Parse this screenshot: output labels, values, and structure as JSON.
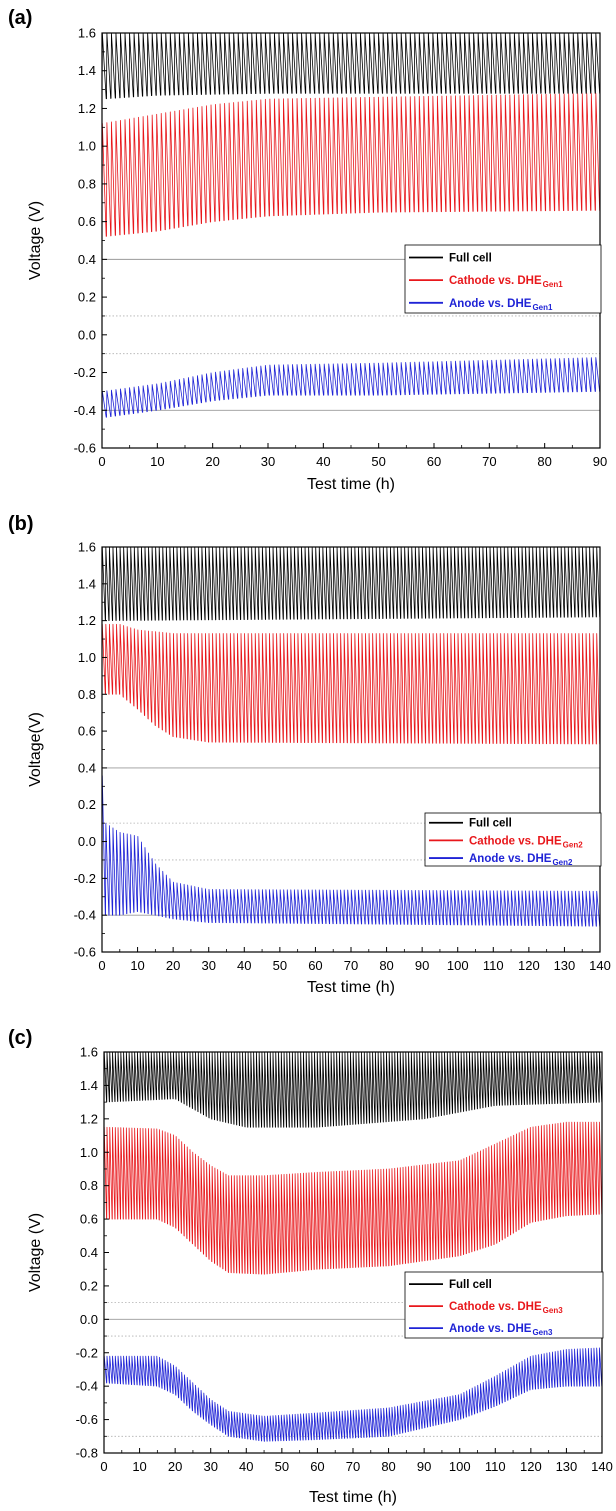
{
  "chart_data": [
    {
      "type": "line",
      "panel_label": "(a)",
      "xlabel": "Test time (h)",
      "ylabel": "Voltage (V)",
      "xlim": [
        0,
        90
      ],
      "ylim": [
        -0.6,
        1.6
      ],
      "xticks": [
        0,
        10,
        20,
        30,
        40,
        50,
        60,
        70,
        80,
        90
      ],
      "xtick_labels": [
        "0",
        "10",
        "20",
        "30",
        "40",
        "50",
        "60",
        "70",
        "80",
        "90"
      ],
      "yticks": [
        -0.6,
        -0.4,
        -0.2,
        0.0,
        0.2,
        0.4,
        0.6,
        0.8,
        1.0,
        1.2,
        1.4,
        1.6
      ],
      "ytick_labels": [
        "-0.6",
        "-0.4",
        "-0.2",
        "0.0",
        "0.2",
        "0.4",
        "0.6",
        "0.8",
        "1.0",
        "1.2",
        "1.4",
        "1.6"
      ],
      "reference_lines": [
        {
          "y": 0.4,
          "style": "solid"
        },
        {
          "y": 0.1,
          "style": "dotted"
        },
        {
          "y": -0.1,
          "style": "dotted"
        },
        {
          "y": -0.4,
          "style": "solid"
        }
      ],
      "grid": false,
      "legend_position": "center-right",
      "cycles": 110,
      "series": [
        {
          "name": "Full cell",
          "name_subscript": "",
          "color": "#000000",
          "envelope": [
            [
              0,
              1.25,
              1.6
            ],
            [
              10,
              1.27,
              1.6
            ],
            [
              30,
              1.28,
              1.6
            ],
            [
              90,
              1.28,
              1.6
            ]
          ]
        },
        {
          "name": "Cathode vs. DHE",
          "name_subscript": "Gen1",
          "color": "#e8171b",
          "envelope": [
            [
              0,
              0.52,
              1.12
            ],
            [
              10,
              0.55,
              1.17
            ],
            [
              20,
              0.6,
              1.22
            ],
            [
              30,
              0.63,
              1.25
            ],
            [
              50,
              0.65,
              1.26
            ],
            [
              90,
              0.66,
              1.28
            ]
          ]
        },
        {
          "name": "Anode vs. DHE",
          "name_subscript": "Gen1",
          "color": "#1f23d6",
          "envelope": [
            [
              0,
              -0.44,
              -0.3
            ],
            [
              10,
              -0.4,
              -0.26
            ],
            [
              20,
              -0.35,
              -0.2
            ],
            [
              30,
              -0.32,
              -0.16
            ],
            [
              50,
              -0.32,
              -0.15
            ],
            [
              90,
              -0.3,
              -0.12
            ]
          ]
        }
      ]
    },
    {
      "type": "line",
      "panel_label": "(b)",
      "xlabel": "Test time (h)",
      "ylabel": "Voltage(V)",
      "xlim": [
        0,
        140
      ],
      "ylim": [
        -0.6,
        1.6
      ],
      "xticks": [
        0,
        10,
        20,
        30,
        40,
        50,
        60,
        70,
        80,
        90,
        100,
        110,
        120,
        130,
        140
      ],
      "xtick_labels": [
        "0",
        "10",
        "20",
        "30",
        "40",
        "50",
        "60",
        "70",
        "80",
        "90",
        "100",
        "110",
        "120",
        "130",
        "140"
      ],
      "yticks": [
        -0.6,
        -0.4,
        -0.2,
        0.0,
        0.2,
        0.4,
        0.6,
        0.8,
        1.0,
        1.2,
        1.4,
        1.6
      ],
      "ytick_labels": [
        "-0.6",
        "-0.4",
        "-0.2",
        "0.0",
        "0.2",
        "0.4",
        "0.6",
        "0.8",
        "1.0",
        "1.2",
        "1.4",
        "1.6"
      ],
      "reference_lines": [
        {
          "y": 0.4,
          "style": "solid"
        },
        {
          "y": 0.1,
          "style": "dotted"
        },
        {
          "y": -0.1,
          "style": "dotted"
        },
        {
          "y": -0.4,
          "style": "solid"
        }
      ],
      "grid": false,
      "legend_position": "center-right",
      "cycles": 140,
      "series": [
        {
          "name": "Full cell",
          "name_subscript": "",
          "color": "#000000",
          "envelope": [
            [
              0,
              1.2,
              1.6
            ],
            [
              140,
              1.22,
              1.6
            ]
          ]
        },
        {
          "name": "Cathode vs. DHE",
          "name_subscript": "Gen2",
          "color": "#e8171b",
          "envelope": [
            [
              0,
              0.8,
              1.18
            ],
            [
              5,
              0.8,
              1.18
            ],
            [
              10,
              0.72,
              1.15
            ],
            [
              15,
              0.63,
              1.14
            ],
            [
              20,
              0.57,
              1.13
            ],
            [
              30,
              0.54,
              1.13
            ],
            [
              140,
              0.53,
              1.13
            ]
          ]
        },
        {
          "name": "Anode vs. DHE",
          "name_subscript": "Gen2",
          "color": "#1f23d6",
          "envelope": [
            [
              0,
              -0.4,
              0.38
            ],
            [
              1,
              -0.4,
              0.1
            ],
            [
              5,
              -0.4,
              0.05
            ],
            [
              10,
              -0.38,
              0.03
            ],
            [
              15,
              -0.4,
              -0.12
            ],
            [
              20,
              -0.42,
              -0.22
            ],
            [
              30,
              -0.44,
              -0.26
            ],
            [
              140,
              -0.46,
              -0.27
            ]
          ]
        }
      ]
    },
    {
      "type": "line",
      "panel_label": "(c)",
      "xlabel": "Test time (h)",
      "ylabel": "Voltage (V)",
      "xlim": [
        0,
        140
      ],
      "ylim": [
        -0.8,
        1.6
      ],
      "xticks": [
        0,
        10,
        20,
        30,
        40,
        50,
        60,
        70,
        80,
        90,
        100,
        110,
        120,
        130,
        140
      ],
      "xtick_labels": [
        "0",
        "10",
        "20",
        "30",
        "40",
        "50",
        "60",
        "70",
        "80",
        "90",
        "100",
        "110",
        "120",
        "130",
        "140"
      ],
      "yticks": [
        -0.8,
        -0.6,
        -0.4,
        -0.2,
        0.0,
        0.2,
        0.4,
        0.6,
        0.8,
        1.0,
        1.2,
        1.4,
        1.6
      ],
      "ytick_labels": [
        "-0.8",
        "-0.6",
        "-0.4",
        "-0.2",
        "0.0",
        "0.2",
        "0.4",
        "0.6",
        "0.8",
        "1.0",
        "1.2",
        "1.4",
        "1.6"
      ],
      "reference_lines": [
        {
          "y": 0.1,
          "style": "dotted"
        },
        {
          "y": 0.0,
          "style": "solid"
        },
        {
          "y": -0.1,
          "style": "dotted"
        },
        {
          "y": -0.7,
          "style": "dotted"
        }
      ],
      "grid": false,
      "legend_position": "center-right",
      "cycles": 180,
      "series": [
        {
          "name": "Full cell",
          "name_subscript": "",
          "color": "#000000",
          "envelope": [
            [
              0,
              1.3,
              1.6
            ],
            [
              20,
              1.32,
              1.6
            ],
            [
              30,
              1.2,
              1.6
            ],
            [
              40,
              1.15,
              1.6
            ],
            [
              60,
              1.15,
              1.6
            ],
            [
              90,
              1.2,
              1.6
            ],
            [
              110,
              1.28,
              1.6
            ],
            [
              140,
              1.3,
              1.6
            ]
          ]
        },
        {
          "name": "Cathode vs. DHE",
          "name_subscript": "Gen3",
          "color": "#e8171b",
          "envelope": [
            [
              0,
              0.6,
              1.15
            ],
            [
              15,
              0.6,
              1.14
            ],
            [
              20,
              0.55,
              1.1
            ],
            [
              25,
              0.45,
              1.0
            ],
            [
              30,
              0.35,
              0.92
            ],
            [
              35,
              0.28,
              0.86
            ],
            [
              45,
              0.27,
              0.86
            ],
            [
              60,
              0.3,
              0.88
            ],
            [
              80,
              0.32,
              0.9
            ],
            [
              100,
              0.38,
              0.95
            ],
            [
              110,
              0.45,
              1.05
            ],
            [
              120,
              0.58,
              1.15
            ],
            [
              130,
              0.62,
              1.18
            ],
            [
              140,
              0.63,
              1.18
            ]
          ]
        },
        {
          "name": "Anode vs. DHE",
          "name_subscript": "Gen3",
          "color": "#1f23d6",
          "envelope": [
            [
              0,
              -0.38,
              -0.22
            ],
            [
              15,
              -0.4,
              -0.22
            ],
            [
              20,
              -0.45,
              -0.28
            ],
            [
              25,
              -0.55,
              -0.38
            ],
            [
              30,
              -0.63,
              -0.48
            ],
            [
              35,
              -0.7,
              -0.55
            ],
            [
              45,
              -0.73,
              -0.58
            ],
            [
              60,
              -0.72,
              -0.56
            ],
            [
              80,
              -0.7,
              -0.53
            ],
            [
              100,
              -0.6,
              -0.45
            ],
            [
              110,
              -0.52,
              -0.34
            ],
            [
              120,
              -0.42,
              -0.22
            ],
            [
              130,
              -0.4,
              -0.18
            ],
            [
              140,
              -0.4,
              -0.17
            ]
          ]
        }
      ]
    }
  ]
}
